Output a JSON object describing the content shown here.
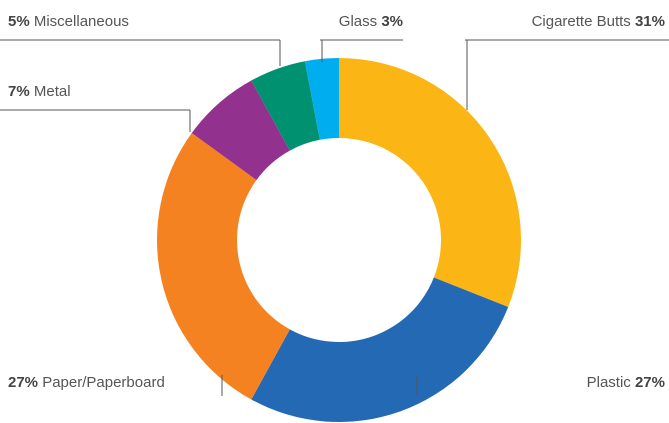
{
  "chart_data": {
    "type": "donut",
    "categories": [
      "Cigarette Butts",
      "Plastic",
      "Paper/Paperboard",
      "Metal",
      "Miscellaneous",
      "Glass"
    ],
    "values": [
      31,
      27,
      27,
      7,
      5,
      3
    ],
    "value_labels": [
      "31%",
      "27%",
      "27%",
      "7%",
      "5%",
      "3%"
    ],
    "colors": [
      "#fbb615",
      "#2369b3",
      "#f58220",
      "#93328e",
      "#009170",
      "#00aeef"
    ]
  }
}
